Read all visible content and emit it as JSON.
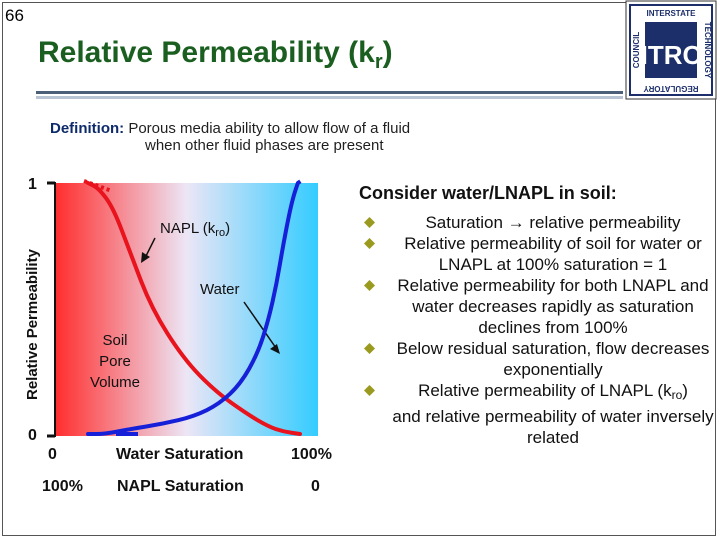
{
  "slide": {
    "number": "66"
  },
  "header": {
    "title_main": "Relative Permeability (k",
    "title_sub": "r",
    "title_end": ")"
  },
  "logo": {
    "top": "INTERSTATE",
    "right": "TECHNOLOGY",
    "bottom": "REGULATORY",
    "left": "COUNCIL",
    "center": "ITRC"
  },
  "definition": {
    "label": "Definition:",
    "line1": "Porous media ability to allow flow of a fluid",
    "line2": "when other fluid phases are present"
  },
  "chart_data": {
    "type": "line",
    "ylabel": "Relative Permeability",
    "y_ticks": [
      "1",
      "0"
    ],
    "ylim": [
      0,
      1
    ],
    "x_axis_water": {
      "label": "Water Saturation",
      "left": "0",
      "right": "100%"
    },
    "x_axis_napl": {
      "label": "NAPL Saturation",
      "left": "100%",
      "right": "0"
    },
    "annotations": {
      "napl": "NAPL (k",
      "napl_sub": "ro",
      "napl_end": ")",
      "water": "Water",
      "soil_1": "Soil",
      "soil_2": "Pore",
      "soil_3": "Volume"
    },
    "series": [
      {
        "name": "NAPL",
        "color": "#e8131c",
        "x": [
          0,
          0.05,
          0.12,
          0.2,
          0.3,
          0.45,
          0.6,
          0.75,
          0.85,
          0.92,
          1.0
        ],
        "values": [
          1.0,
          0.98,
          0.9,
          0.72,
          0.5,
          0.3,
          0.17,
          0.08,
          0.03,
          0.01,
          0.0
        ]
      },
      {
        "name": "Water",
        "color": "#1520d8",
        "x": [
          0,
          0.08,
          0.2,
          0.35,
          0.5,
          0.62,
          0.72,
          0.8,
          0.85,
          0.89,
          0.92,
          0.95,
          0.97,
          0.99
        ],
        "values": [
          0.0,
          0.0,
          0.02,
          0.04,
          0.07,
          0.12,
          0.2,
          0.32,
          0.45,
          0.6,
          0.75,
          0.88,
          0.95,
          1.0
        ]
      }
    ],
    "colors": {
      "left": "#ff2d2d",
      "mid": "#ece6f6",
      "right": "#33ccff"
    }
  },
  "right_panel": {
    "heading": "Consider water/LNAPL in soil:",
    "bullet_color": "#9a9a1f",
    "bullets": [
      "Saturation → relative permeability",
      "Relative permeability of soil for water or LNAPL at 100% saturation = 1",
      "Relative permeability for both LNAPL and water decreases rapidly as saturation declines from 100%",
      "Below residual saturation, flow decreases exponentially",
      "Relative permeability of LNAPL (k",
      "and relative permeability of water inversely related"
    ],
    "bullet5_sub": "ro",
    "bullet5_end": ")"
  }
}
